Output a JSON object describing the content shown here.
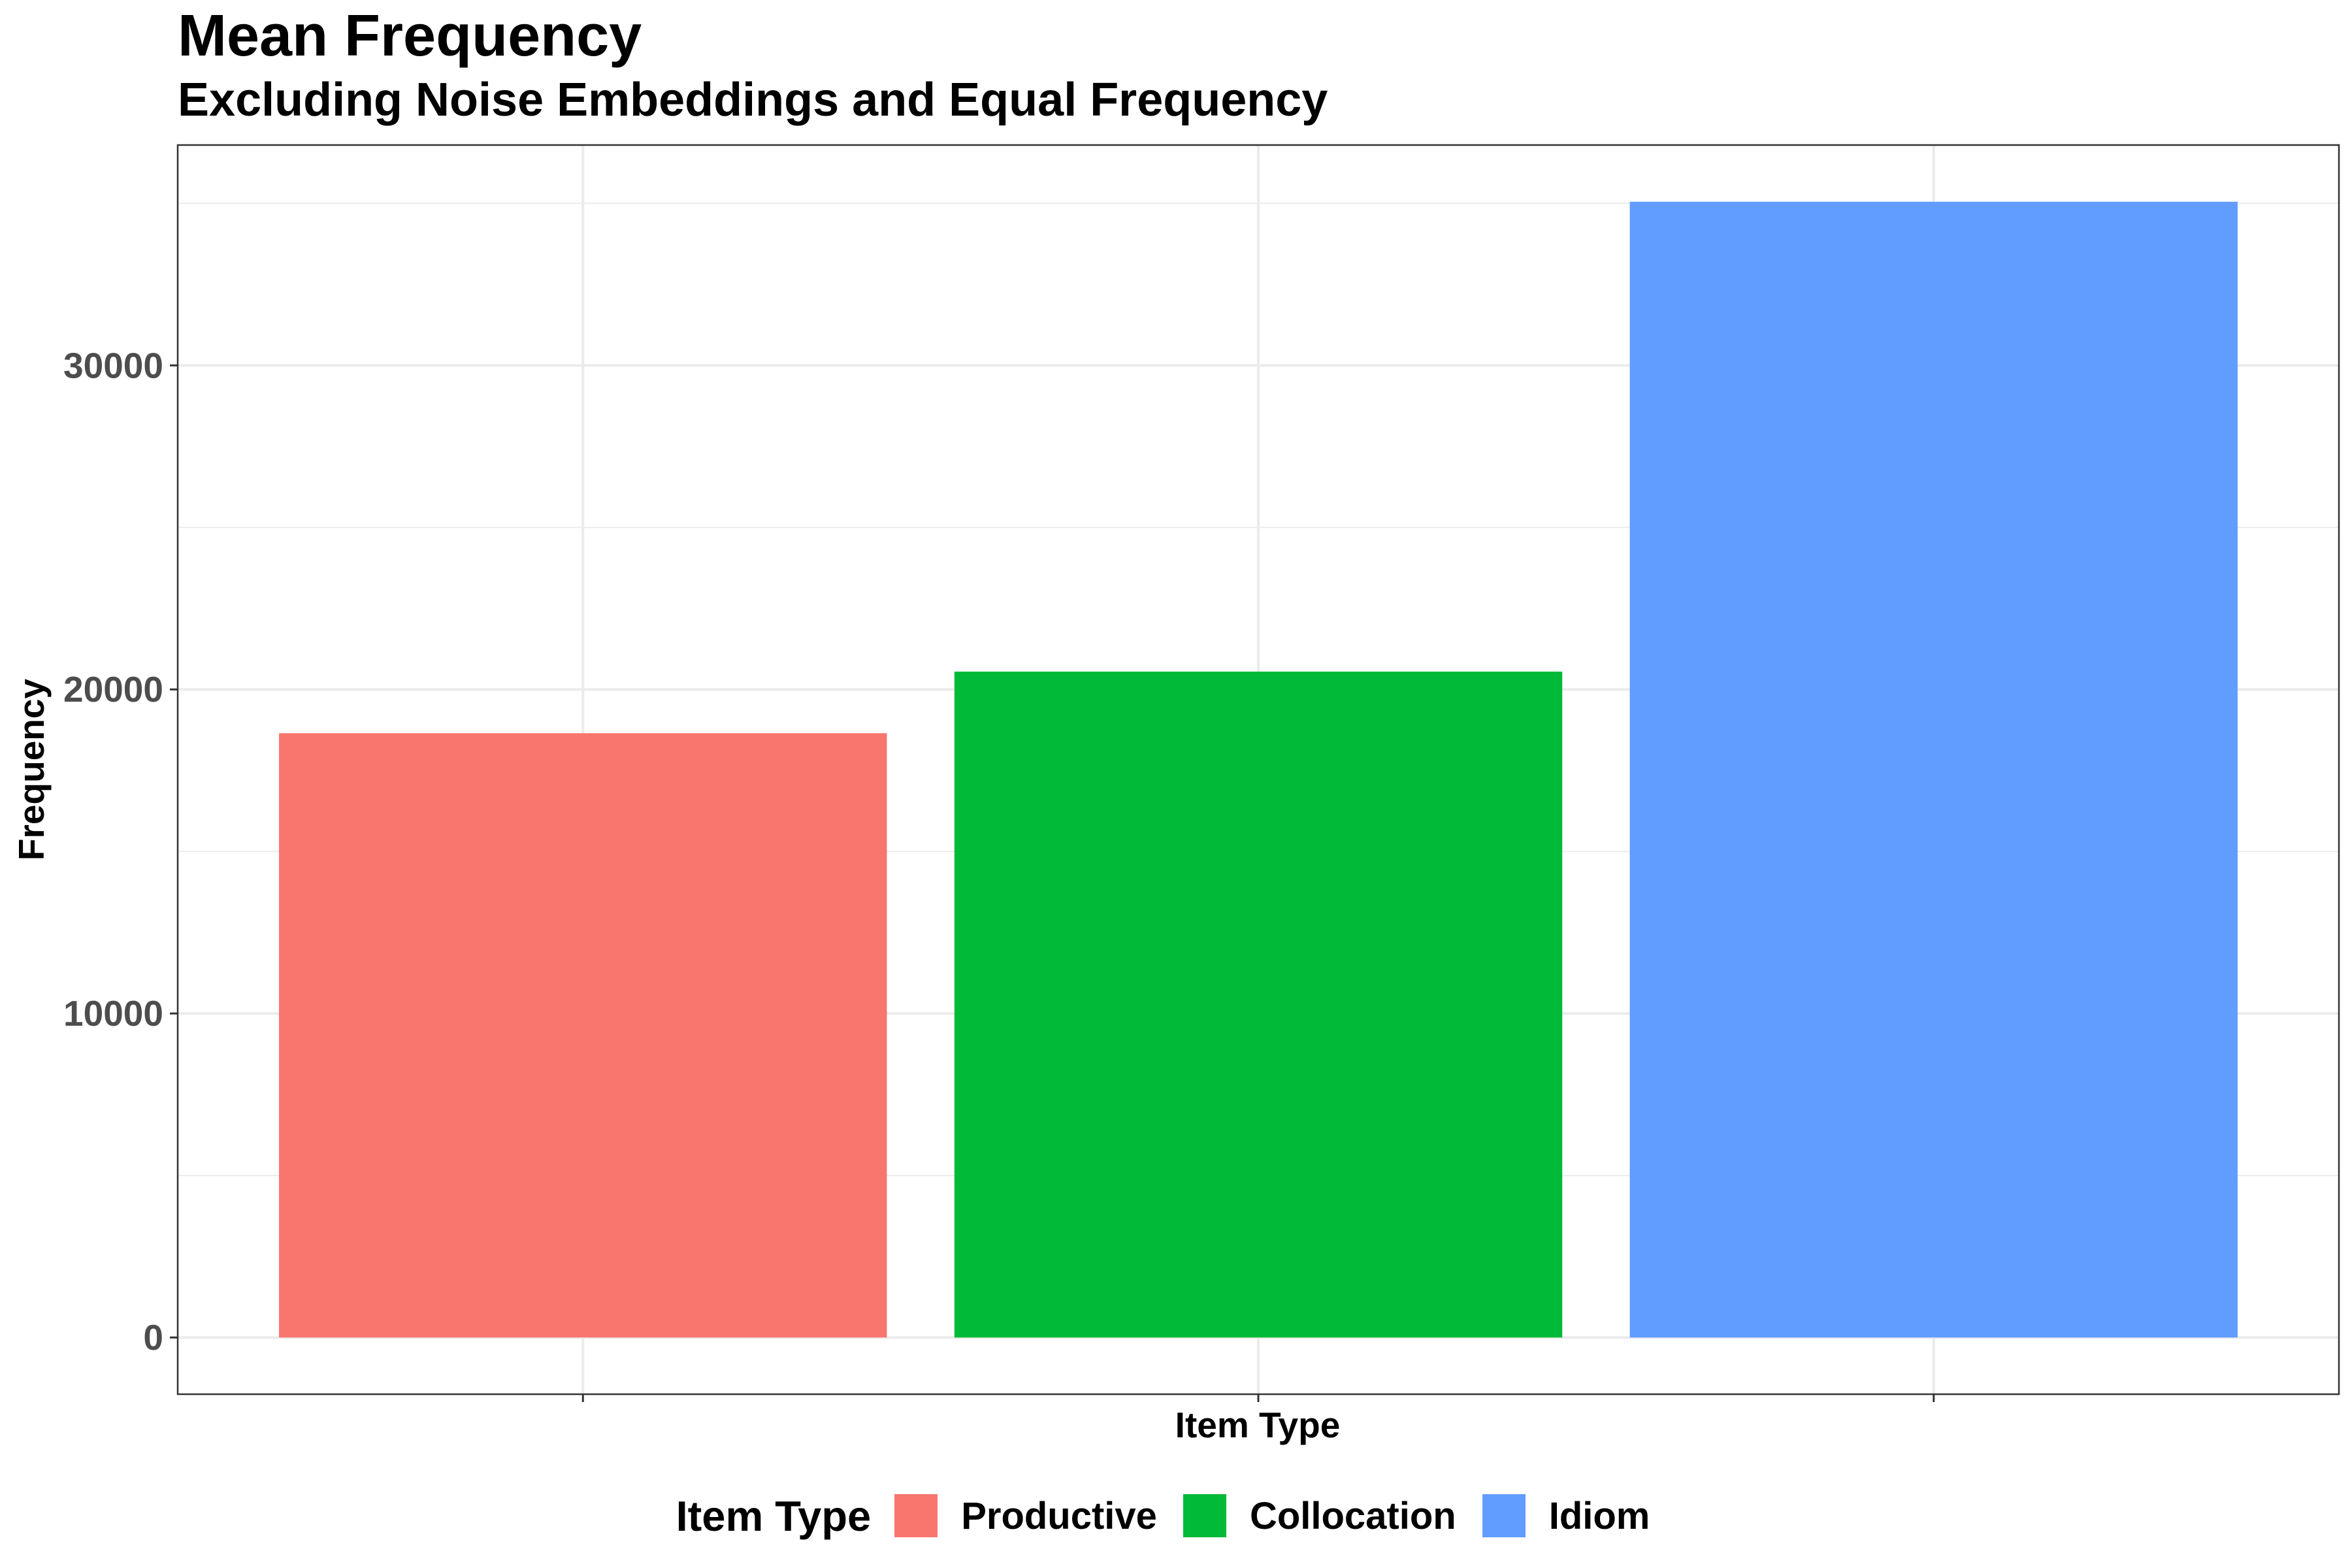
{
  "chart_data": {
    "type": "bar",
    "title": "Mean Frequency",
    "subtitle": "Excluding Noise Embeddings and Equal Frequency",
    "xlabel": "Item Type",
    "ylabel": "Frequency",
    "categories": [
      "Productive",
      "Collocation",
      "Idiom"
    ],
    "values": [
      18650,
      20550,
      35050
    ],
    "colors": [
      "#F8766D",
      "#00BA38",
      "#619CFF"
    ],
    "ylim": [
      -1750,
      36800
    ],
    "yticks": [
      0,
      10000,
      20000,
      30000
    ],
    "ytick_labels": [
      "0",
      "10000",
      "20000",
      "30000"
    ],
    "grid": true,
    "legend": {
      "title": "Item Type",
      "position": "bottom",
      "entries": [
        "Productive",
        "Collocation",
        "Idiom"
      ]
    }
  }
}
